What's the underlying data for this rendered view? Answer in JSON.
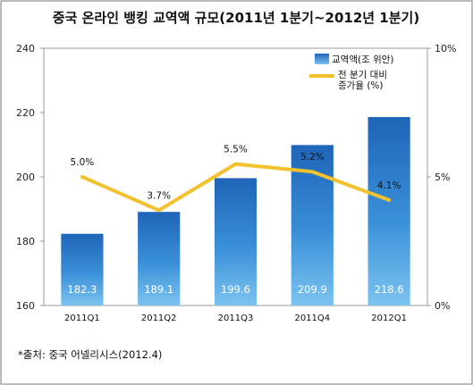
{
  "chart_data": {
    "type": "bar",
    "title": "중국 온라인 뱅킹 교역액 규모(2011년 1분기~2012년 1분기)",
    "categories": [
      "2011Q1",
      "2011Q2",
      "2011Q3",
      "2011Q4",
      "2012Q1"
    ],
    "series": [
      {
        "name": "교역액(조 위안)",
        "type": "bar",
        "axis": "left",
        "color": "#2f7fd0",
        "values": [
          182.3,
          189.1,
          199.6,
          209.9,
          218.6
        ],
        "labels": [
          "182.3",
          "189.1",
          "199.6",
          "209.9",
          "218.6"
        ]
      },
      {
        "name": "전 분기 대비 증가율 (%)",
        "name_lines": [
          "전 분기 대비",
          "증가율 (%)"
        ],
        "type": "line",
        "axis": "right",
        "color": "#f2c12e",
        "values": [
          5.0,
          3.7,
          5.5,
          5.2,
          4.1
        ],
        "labels": [
          "5.0%",
          "3.7%",
          "5.5%",
          "5.2%",
          "4.1%"
        ]
      }
    ],
    "y_left": {
      "ylim": [
        160,
        240
      ],
      "ticks": [
        "160",
        "180",
        "200",
        "220",
        "240"
      ]
    },
    "y_right": {
      "ylim": [
        0,
        10
      ],
      "ticks": [
        "0%",
        "5%",
        "10%"
      ]
    },
    "grid": false,
    "legend_position": "top-right"
  },
  "source": "*출처: 중국 어넬리시스(2012.4)"
}
